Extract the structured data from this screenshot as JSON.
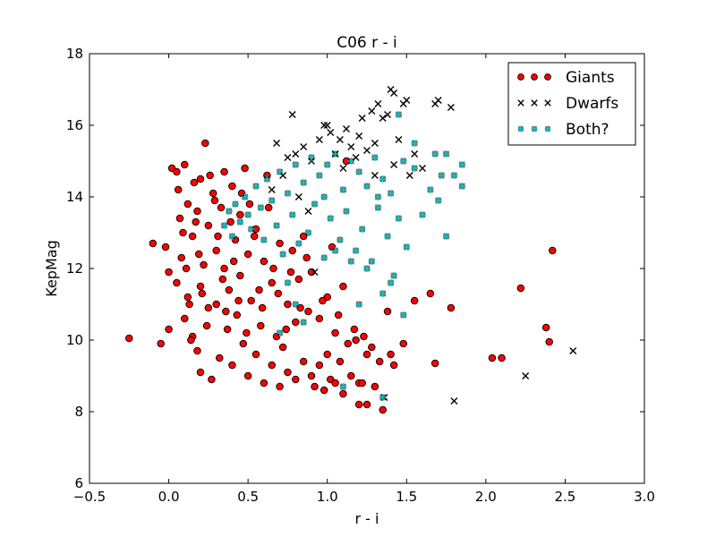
{
  "chart_data": {
    "type": "scatter",
    "title": "C06 r - i",
    "xlabel": "r - i",
    "ylabel": "KepMag",
    "xlim": [
      -0.5,
      3.0
    ],
    "ylim": [
      6,
      18
    ],
    "xticks": [
      -0.5,
      0.0,
      0.5,
      1.0,
      1.5,
      2.0,
      2.5,
      3.0
    ],
    "xtick_labels": [
      "−0.5",
      "0.0",
      "0.5",
      "1.0",
      "1.5",
      "2.0",
      "2.5",
      "3.0"
    ],
    "yticks": [
      6,
      8,
      10,
      12,
      14,
      16,
      18
    ],
    "ytick_labels": [
      "6",
      "8",
      "10",
      "12",
      "14",
      "16",
      "18"
    ],
    "grid": false,
    "legend_position": "top-right",
    "series": [
      {
        "name": "Giants",
        "marker": "circle",
        "color": "#ff0000",
        "edgecolor": "#000000",
        "points": [
          [
            -0.25,
            10.05
          ],
          [
            -0.1,
            12.7
          ],
          [
            -0.05,
            9.9
          ],
          [
            -0.02,
            12.6
          ],
          [
            0.0,
            11.9
          ],
          [
            0.0,
            10.3
          ],
          [
            0.02,
            14.8
          ],
          [
            0.05,
            11.6
          ],
          [
            0.05,
            14.7
          ],
          [
            0.07,
            13.4
          ],
          [
            0.08,
            12.3
          ],
          [
            0.1,
            10.6
          ],
          [
            0.1,
            14.9
          ],
          [
            0.12,
            13.8
          ],
          [
            0.12,
            11.2
          ],
          [
            0.15,
            12.9
          ],
          [
            0.15,
            10.1
          ],
          [
            0.18,
            13.6
          ],
          [
            0.18,
            9.7
          ],
          [
            0.2,
            14.5
          ],
          [
            0.2,
            11.5
          ],
          [
            0.2,
            9.1
          ],
          [
            0.22,
            12.1
          ],
          [
            0.23,
            15.5
          ],
          [
            0.25,
            13.2
          ],
          [
            0.25,
            10.9
          ],
          [
            0.27,
            8.9
          ],
          [
            0.28,
            14.1
          ],
          [
            0.3,
            12.5
          ],
          [
            0.3,
            11.0
          ],
          [
            0.32,
            9.5
          ],
          [
            0.33,
            13.7
          ],
          [
            0.35,
            14.7
          ],
          [
            0.35,
            12.0
          ],
          [
            0.37,
            10.3
          ],
          [
            0.38,
            11.4
          ],
          [
            0.4,
            14.3
          ],
          [
            0.4,
            9.3
          ],
          [
            0.42,
            12.8
          ],
          [
            0.43,
            10.7
          ],
          [
            0.45,
            13.5
          ],
          [
            0.45,
            11.8
          ],
          [
            0.47,
            9.9
          ],
          [
            0.48,
            14.8
          ],
          [
            0.5,
            12.4
          ],
          [
            0.5,
            9.0
          ],
          [
            0.52,
            11.1
          ],
          [
            0.55,
            13.1
          ],
          [
            0.55,
            9.6
          ],
          [
            0.58,
            10.4
          ],
          [
            0.6,
            12.2
          ],
          [
            0.6,
            8.8
          ],
          [
            0.62,
            14.6
          ],
          [
            0.65,
            11.6
          ],
          [
            0.65,
            9.3
          ],
          [
            0.68,
            10.1
          ],
          [
            0.7,
            12.7
          ],
          [
            0.7,
            8.7
          ],
          [
            0.72,
            9.8
          ],
          [
            0.75,
            11.0
          ],
          [
            0.75,
            9.1
          ],
          [
            0.78,
            12.5
          ],
          [
            0.8,
            10.5
          ],
          [
            0.8,
            8.9
          ],
          [
            0.82,
            11.7
          ],
          [
            0.85,
            9.4
          ],
          [
            0.85,
            12.9
          ],
          [
            0.88,
            10.8
          ],
          [
            0.9,
            9.0
          ],
          [
            0.9,
            11.9
          ],
          [
            0.92,
            8.7
          ],
          [
            0.95,
            10.6
          ],
          [
            0.95,
            9.3
          ],
          [
            0.98,
            8.6
          ],
          [
            1.0,
            11.2
          ],
          [
            1.0,
            9.6
          ],
          [
            1.02,
            8.9
          ],
          [
            1.05,
            10.2
          ],
          [
            1.05,
            8.8
          ],
          [
            1.08,
            9.4
          ],
          [
            1.1,
            11.5
          ],
          [
            1.1,
            8.5
          ],
          [
            1.12,
            15.0
          ],
          [
            1.15,
            9.0
          ],
          [
            1.18,
            10.0
          ],
          [
            1.2,
            8.8
          ],
          [
            1.2,
            8.2
          ],
          [
            1.22,
            8.8
          ],
          [
            1.25,
            9.6
          ],
          [
            1.25,
            8.2
          ],
          [
            1.3,
            8.7
          ],
          [
            1.35,
            8.05
          ],
          [
            1.4,
            9.6
          ],
          [
            1.42,
            9.3
          ],
          [
            1.48,
            9.9
          ],
          [
            1.55,
            11.1
          ],
          [
            1.65,
            11.3
          ],
          [
            1.68,
            9.35
          ],
          [
            1.78,
            10.9
          ],
          [
            2.04,
            9.5
          ],
          [
            2.1,
            9.5
          ],
          [
            2.22,
            11.45
          ],
          [
            2.38,
            10.35
          ],
          [
            2.4,
            9.95
          ],
          [
            2.42,
            12.5
          ],
          [
            0.06,
            14.2
          ],
          [
            0.09,
            13.0
          ],
          [
            0.11,
            12.0
          ],
          [
            0.13,
            11.0
          ],
          [
            0.14,
            10.0
          ],
          [
            0.16,
            14.4
          ],
          [
            0.17,
            13.3
          ],
          [
            0.19,
            12.4
          ],
          [
            0.21,
            11.3
          ],
          [
            0.24,
            10.4
          ],
          [
            0.26,
            14.6
          ],
          [
            0.29,
            13.9
          ],
          [
            0.31,
            12.9
          ],
          [
            0.34,
            11.7
          ],
          [
            0.36,
            10.8
          ],
          [
            0.39,
            13.3
          ],
          [
            0.41,
            12.2
          ],
          [
            0.44,
            11.1
          ],
          [
            0.46,
            14.1
          ],
          [
            0.49,
            10.2
          ],
          [
            0.51,
            13.8
          ],
          [
            0.54,
            12.9
          ],
          [
            0.57,
            11.4
          ],
          [
            0.59,
            10.9
          ],
          [
            0.63,
            13.7
          ],
          [
            0.66,
            12.0
          ],
          [
            0.69,
            11.3
          ],
          [
            0.74,
            10.3
          ],
          [
            0.77,
            11.9
          ],
          [
            0.83,
            10.9
          ],
          [
            0.87,
            12.3
          ],
          [
            0.97,
            11.1
          ],
          [
            1.03,
            12.6
          ],
          [
            1.07,
            10.7
          ],
          [
            1.13,
            9.9
          ],
          [
            1.17,
            10.3
          ],
          [
            1.23,
            10.1
          ],
          [
            1.28,
            9.8
          ],
          [
            1.33,
            9.4
          ],
          [
            1.38,
            10.8
          ]
        ]
      },
      {
        "name": "Dwarfs",
        "marker": "x",
        "color": "#000000",
        "points": [
          [
            0.68,
            15.5
          ],
          [
            0.75,
            15.1
          ],
          [
            0.78,
            16.3
          ],
          [
            0.8,
            15.2
          ],
          [
            0.85,
            15.4
          ],
          [
            0.9,
            15.0
          ],
          [
            0.95,
            15.6
          ],
          [
            0.98,
            16.0
          ],
          [
            1.0,
            16.0
          ],
          [
            1.02,
            15.8
          ],
          [
            1.05,
            15.2
          ],
          [
            1.08,
            15.6
          ],
          [
            1.1,
            14.8
          ],
          [
            1.12,
            15.9
          ],
          [
            1.15,
            15.4
          ],
          [
            1.18,
            15.1
          ],
          [
            1.2,
            15.7
          ],
          [
            1.22,
            16.2
          ],
          [
            1.25,
            15.3
          ],
          [
            1.28,
            16.4
          ],
          [
            1.3,
            15.5
          ],
          [
            1.32,
            16.6
          ],
          [
            1.35,
            16.2
          ],
          [
            1.38,
            16.3
          ],
          [
            1.4,
            17.0
          ],
          [
            1.42,
            16.9
          ],
          [
            1.45,
            15.6
          ],
          [
            1.48,
            16.6
          ],
          [
            1.5,
            16.7
          ],
          [
            1.55,
            15.2
          ],
          [
            1.6,
            14.8
          ],
          [
            1.68,
            16.6
          ],
          [
            1.7,
            16.7
          ],
          [
            1.78,
            16.5
          ],
          [
            1.8,
            8.3
          ],
          [
            2.25,
            9.0
          ],
          [
            2.55,
            9.7
          ],
          [
            0.92,
            11.9
          ],
          [
            0.88,
            13.6
          ],
          [
            0.82,
            14.0
          ],
          [
            0.72,
            14.6
          ],
          [
            0.65,
            14.2
          ],
          [
            1.3,
            14.6
          ],
          [
            1.42,
            14.9
          ],
          [
            1.52,
            14.6
          ],
          [
            1.36,
            8.4
          ]
        ]
      },
      {
        "name": "Both?",
        "marker": "plus",
        "color": "#00c8c8",
        "edgecolor": "#000000",
        "points": [
          [
            0.35,
            13.2
          ],
          [
            0.38,
            13.6
          ],
          [
            0.4,
            12.9
          ],
          [
            0.42,
            13.8
          ],
          [
            0.45,
            13.3
          ],
          [
            0.48,
            14.0
          ],
          [
            0.5,
            13.5
          ],
          [
            0.52,
            13.1
          ],
          [
            0.55,
            14.3
          ],
          [
            0.58,
            13.7
          ],
          [
            0.6,
            12.8
          ],
          [
            0.62,
            14.5
          ],
          [
            0.65,
            13.9
          ],
          [
            0.68,
            13.2
          ],
          [
            0.7,
            14.7
          ],
          [
            0.72,
            12.4
          ],
          [
            0.75,
            14.1
          ],
          [
            0.78,
            13.5
          ],
          [
            0.8,
            14.9
          ],
          [
            0.82,
            12.7
          ],
          [
            0.85,
            14.4
          ],
          [
            0.88,
            13.0
          ],
          [
            0.9,
            15.1
          ],
          [
            0.92,
            13.8
          ],
          [
            0.95,
            14.6
          ],
          [
            0.98,
            12.3
          ],
          [
            1.0,
            14.9
          ],
          [
            1.02,
            13.4
          ],
          [
            1.05,
            15.2
          ],
          [
            1.08,
            12.8
          ],
          [
            1.1,
            14.2
          ],
          [
            1.12,
            13.6
          ],
          [
            1.15,
            15.0
          ],
          [
            1.18,
            12.5
          ],
          [
            1.2,
            14.7
          ],
          [
            1.22,
            13.1
          ],
          [
            1.25,
            14.3
          ],
          [
            1.28,
            12.2
          ],
          [
            1.3,
            15.1
          ],
          [
            1.32,
            13.7
          ],
          [
            1.35,
            14.5
          ],
          [
            1.38,
            12.9
          ],
          [
            1.4,
            14.1
          ],
          [
            1.42,
            11.8
          ],
          [
            1.45,
            13.4
          ],
          [
            1.48,
            15.0
          ],
          [
            1.5,
            12.6
          ],
          [
            1.55,
            14.8
          ],
          [
            1.6,
            13.5
          ],
          [
            1.65,
            14.2
          ],
          [
            1.68,
            15.2
          ],
          [
            1.7,
            13.9
          ],
          [
            1.72,
            14.6
          ],
          [
            1.75,
            12.9
          ],
          [
            1.8,
            14.6
          ],
          [
            1.85,
            14.3
          ],
          [
            1.85,
            14.9
          ],
          [
            1.48,
            10.7
          ],
          [
            1.35,
            11.3
          ],
          [
            1.25,
            12.0
          ],
          [
            1.15,
            12.2
          ],
          [
            1.05,
            12.5
          ],
          [
            1.2,
            11.0
          ],
          [
            1.4,
            11.6
          ],
          [
            0.75,
            11.6
          ],
          [
            0.8,
            11.0
          ],
          [
            0.85,
            10.5
          ],
          [
            0.7,
            10.2
          ],
          [
            1.1,
            8.7
          ],
          [
            1.35,
            8.4
          ],
          [
            1.55,
            15.5
          ],
          [
            1.45,
            16.3
          ],
          [
            1.75,
            15.2
          ],
          [
            1.32,
            14.0
          ],
          [
            0.98,
            14.0
          ]
        ]
      }
    ]
  }
}
